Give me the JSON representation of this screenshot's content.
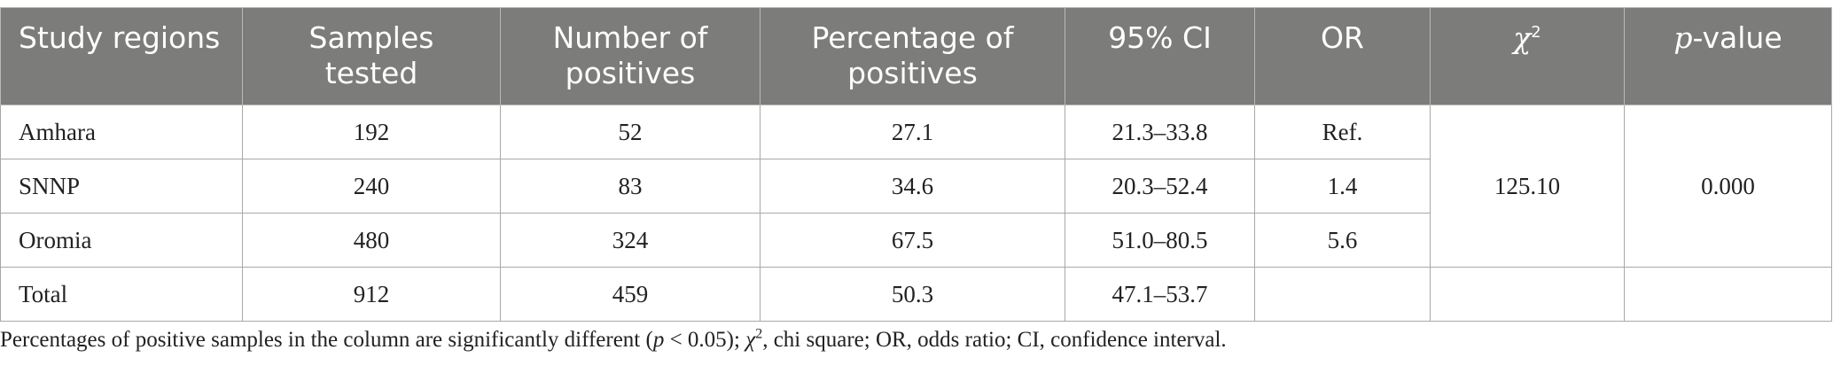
{
  "table": {
    "headers": {
      "region": "Study regions",
      "samples": "Samples tested",
      "positives": "Number of positives",
      "percentage": "Percentage of positives",
      "ci": "95% CI",
      "or": "OR",
      "chi_symbol": "χ",
      "chi_sup": "2",
      "p_italic": "p",
      "p_rest": "-value"
    },
    "rows": [
      {
        "region": "Amhara",
        "samples": "192",
        "positives": "52",
        "percentage": "27.1",
        "ci": "21.3–33.8",
        "or": "Ref."
      },
      {
        "region": "SNNP",
        "samples": "240",
        "positives": "83",
        "percentage": "34.6",
        "ci": "20.3–52.4",
        "or": "1.4"
      },
      {
        "region": "Oromia",
        "samples": "480",
        "positives": "324",
        "percentage": "67.5",
        "ci": "51.0–80.5",
        "or": "5.6"
      },
      {
        "region": "Total",
        "samples": "912",
        "positives": "459",
        "percentage": "50.3",
        "ci": "47.1–53.7",
        "or": ""
      }
    ],
    "chi_value": "125.10",
    "p_value": "0.000"
  },
  "footnote": {
    "part1": "Percentages of positive samples in the column are significantly different (",
    "p": "p",
    "part2": " < 0.05); ",
    "chi": "χ",
    "chi_sup": "2",
    "part3": ", chi square; OR, odds ratio; CI, confidence interval."
  }
}
